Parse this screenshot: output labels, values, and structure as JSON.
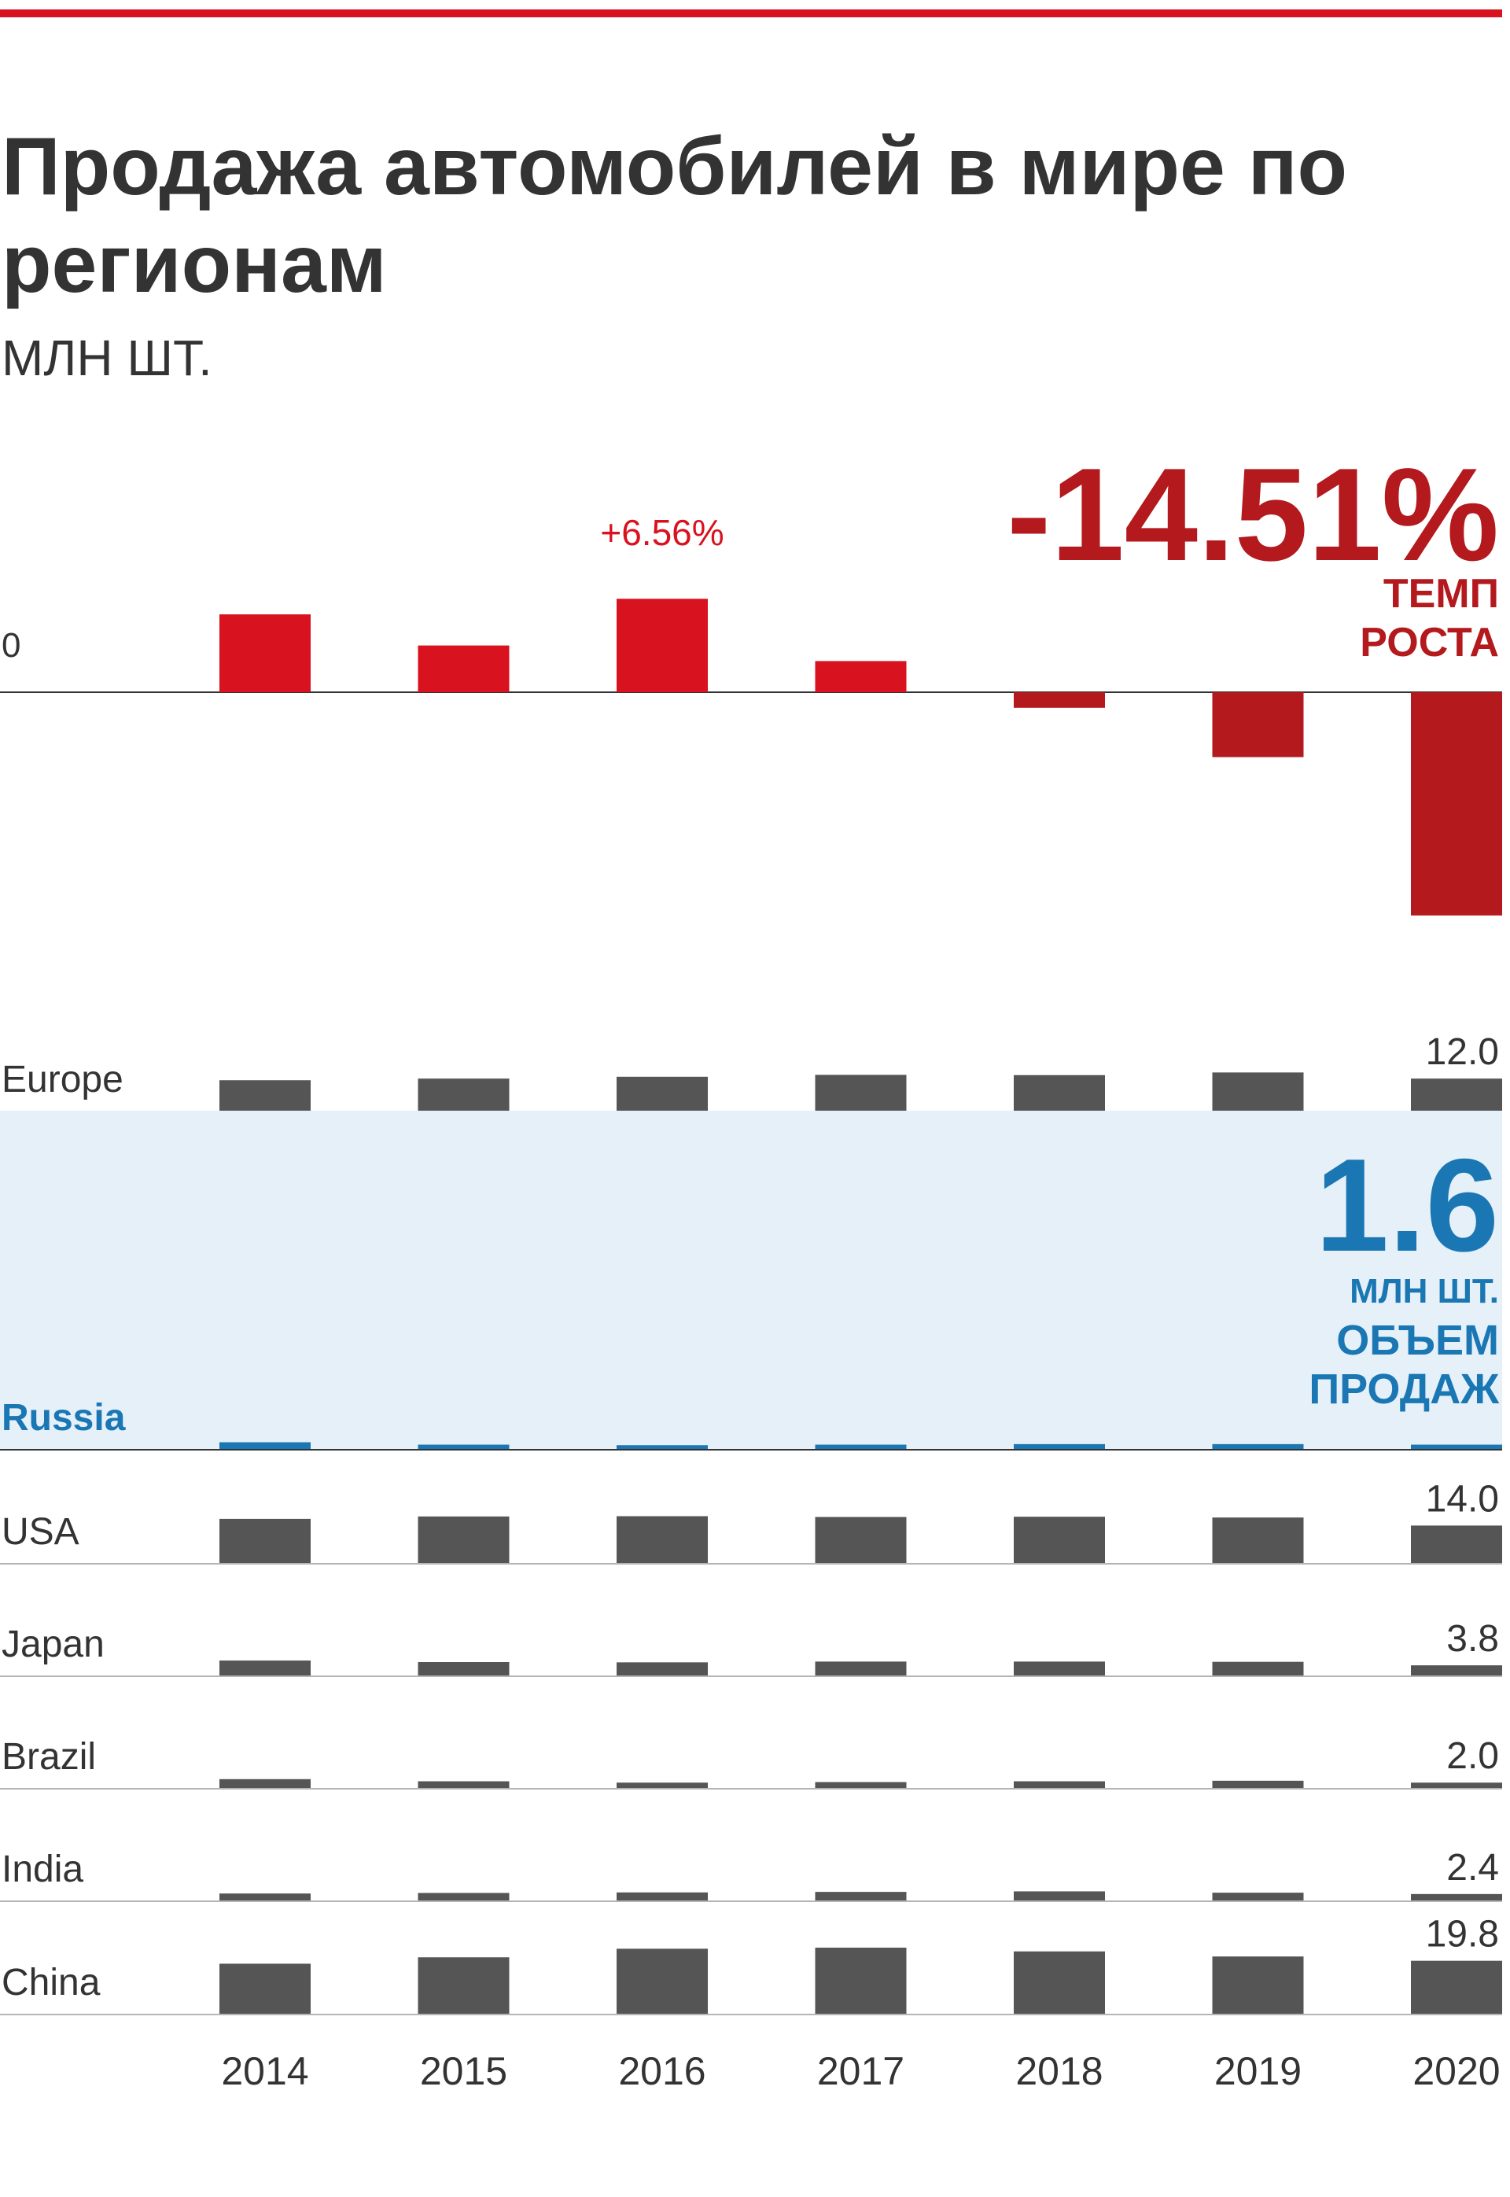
{
  "title": "Продажа автомобилей в мире по регионам",
  "subtitle": "МЛН ШТ.",
  "colors": {
    "accent_red": "#d9121f",
    "accent_red_dark": "#b3191d",
    "bar_gray": "#555555",
    "highlight_blue": "#1a77b3",
    "highlight_bg": "#e5f0f8",
    "axis_line": "#333333",
    "divider": "#b5b5b5"
  },
  "chart_data": {
    "type": "bar",
    "categories": [
      "2014",
      "2015",
      "2016",
      "2017",
      "2018",
      "2019",
      "2020"
    ],
    "growth": {
      "zero_label": "0",
      "values": [
        3.0,
        1.8,
        3.6,
        1.2,
        -0.6,
        -2.5,
        -8.6
      ],
      "annotations": {
        "2016": "+6.56%",
        "2020": "-14.51%"
      },
      "callout_value": "-14.51%",
      "callout_label_lines": [
        "ТЕМП",
        "РОСТА"
      ]
    },
    "regions": [
      {
        "name": "Europe",
        "values": [
          11.4,
          12.0,
          12.7,
          13.4,
          13.3,
          14.3,
          12.0
        ],
        "last_label": "12.0"
      },
      {
        "name": "Russia",
        "highlight": true,
        "values": [
          2.5,
          1.6,
          1.4,
          1.6,
          1.8,
          1.8,
          1.6
        ],
        "callout_value": "1.6",
        "callout_unit": "МЛН ШТ.",
        "callout_label_lines": [
          "ОБЪЕМ",
          "ПРОДАЖ"
        ]
      },
      {
        "name": "USA",
        "values": [
          16.5,
          17.4,
          17.5,
          17.2,
          17.3,
          17.0,
          14.0
        ],
        "last_label": "14.0"
      },
      {
        "name": "Japan",
        "values": [
          5.6,
          5.0,
          4.9,
          5.2,
          5.2,
          5.1,
          3.8
        ],
        "last_label": "3.8"
      },
      {
        "name": "Brazil",
        "values": [
          3.3,
          2.5,
          2.0,
          2.2,
          2.5,
          2.7,
          2.0
        ],
        "last_label": "2.0"
      },
      {
        "name": "India",
        "values": [
          2.6,
          2.8,
          3.0,
          3.2,
          3.4,
          2.9,
          2.4
        ],
        "last_label": "2.4"
      },
      {
        "name": "China",
        "values": [
          18.7,
          21.1,
          24.3,
          24.7,
          23.3,
          21.4,
          19.8
        ],
        "last_label": "19.8"
      }
    ]
  }
}
